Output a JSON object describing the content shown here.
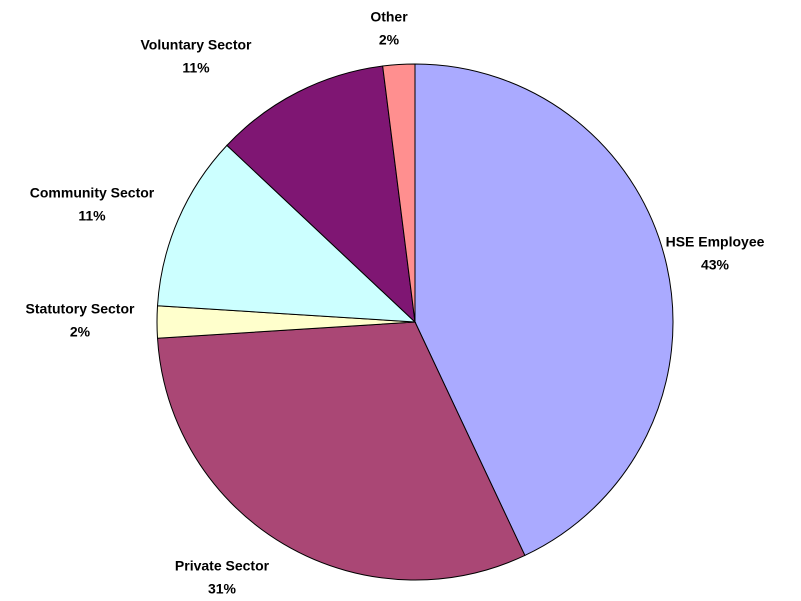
{
  "chart_data": {
    "type": "pie",
    "categories": [
      "HSE Employee",
      "Private Sector",
      "Statutory Sector",
      "Community Sector",
      "Voluntary Sector",
      "Other"
    ],
    "values": [
      43,
      31,
      2,
      11,
      11,
      2
    ],
    "value_labels": [
      "43%",
      "31%",
      "2%",
      "11%",
      "11%",
      "2%"
    ],
    "colors": [
      "#aaaaff",
      "#aa4775",
      "#ffffcc",
      "#ccffff",
      "#7f1673",
      "#ff8f8f"
    ]
  }
}
